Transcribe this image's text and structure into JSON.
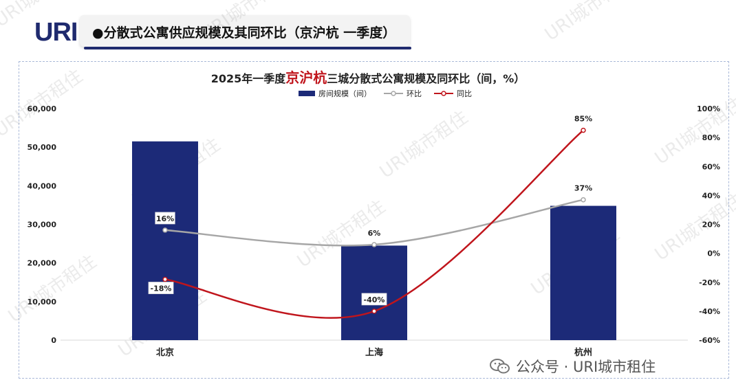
{
  "header": {
    "logo_text": "URI",
    "title": "●分散式公寓供应规模及其同环比（京沪杭 一季度）"
  },
  "chart_title": {
    "prefix": "2025年一季度",
    "highlight": "京沪杭",
    "suffix": "三城分散式公寓规模及同环比（间，%）"
  },
  "footer": {
    "text": "公众号 · URI城市租住",
    "icon": "wechat-icon"
  },
  "watermark": "URI城市租住",
  "colors": {
    "bar": "#1c2a78",
    "qoq_line": "#a6a6a6",
    "yoy_line": "#c0151c",
    "highlight": "#c0151c"
  },
  "chart_data": {
    "type": "bar",
    "categories": [
      "北京",
      "上海",
      "杭州"
    ],
    "series": [
      {
        "name": "房间规模（间）",
        "type": "bar",
        "axis": "left",
        "values": [
          51500,
          24500,
          34800
        ]
      },
      {
        "name": "环比",
        "type": "line",
        "axis": "right",
        "values": [
          16,
          6,
          37
        ],
        "labels": [
          "16%",
          "6%",
          "37%"
        ]
      },
      {
        "name": "同比",
        "type": "line",
        "axis": "right",
        "values": [
          -18,
          -40,
          85
        ],
        "labels": [
          "-18%",
          "-40%",
          "85%"
        ]
      }
    ],
    "y_left": {
      "ylim": [
        0,
        60000
      ],
      "ticks": [
        "0",
        "10,000",
        "20,000",
        "30,000",
        "40,000",
        "50,000",
        "60,000"
      ]
    },
    "y_right": {
      "ylim": [
        -60,
        100
      ],
      "ticks": [
        "-60%",
        "-40%",
        "-20%",
        "0%",
        "20%",
        "40%",
        "60%",
        "80%",
        "100%"
      ]
    },
    "legend_position": "top-center",
    "grid": false
  }
}
